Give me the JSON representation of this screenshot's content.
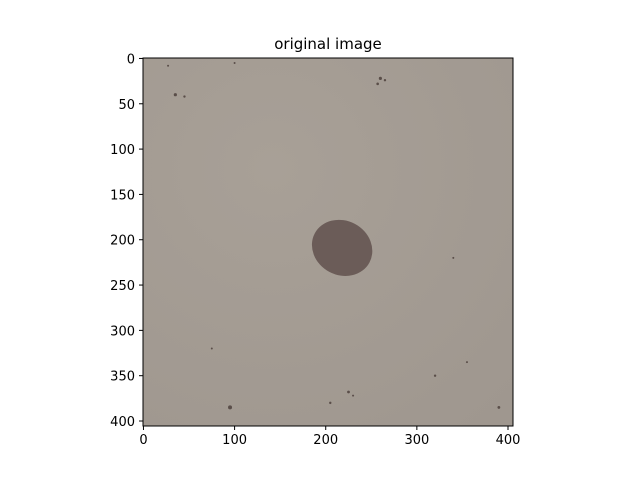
{
  "chart_data": {
    "type": "image",
    "title": "original image",
    "xlabel": "",
    "ylabel": "",
    "image_width": 406,
    "image_height": 406,
    "xlim": [
      -0.5,
      405.5
    ],
    "ylim": [
      405.5,
      -0.5
    ],
    "x_ticks": [
      0,
      100,
      200,
      300,
      400
    ],
    "y_ticks": [
      0,
      50,
      100,
      150,
      200,
      250,
      300,
      350,
      400
    ],
    "grid": false,
    "content": {
      "background_color": "#a39a93",
      "spot": {
        "cx": 218,
        "cy": 209,
        "rx": 34,
        "ry": 30,
        "color": "#6b5c58"
      },
      "speckle_color": "#5a4e49"
    }
  }
}
